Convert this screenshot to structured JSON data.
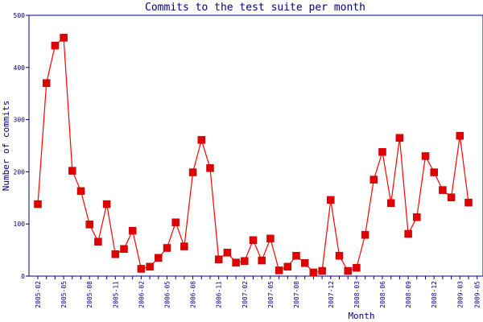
{
  "chart_data": {
    "type": "line",
    "title": "Commits to the test suite per month",
    "xlabel": "Month",
    "ylabel": "Number of commits",
    "ylim": [
      0,
      500
    ],
    "yticks": [
      0,
      100,
      200,
      300,
      400,
      500
    ],
    "xtick_labels": [
      "2005-02",
      "2005-05",
      "2005-08",
      "2005-11",
      "2006-02",
      "2006-05",
      "2006-08",
      "2006-11",
      "2007-02",
      "2007-05",
      "2007-08",
      "2007-12",
      "2008-03",
      "2008-06",
      "2008-09",
      "2008-12",
      "2009-03",
      "2009-05"
    ],
    "grid": false,
    "legend": "none",
    "line_color": "#ff0000",
    "marker_color": "#e00000",
    "axis_color": "#000080",
    "series": [
      {
        "values": [
          138,
          370,
          442,
          457,
          202,
          163,
          99,
          66,
          138,
          42,
          52,
          87,
          14,
          18,
          35,
          54,
          103,
          57,
          199,
          261,
          207,
          32,
          45,
          26,
          29,
          69,
          30,
          72,
          11,
          18,
          39,
          25,
          7,
          10,
          146,
          39,
          10,
          16,
          79,
          185,
          238,
          140,
          265,
          81,
          113,
          230,
          199,
          165,
          151,
          269,
          141
        ]
      }
    ]
  }
}
